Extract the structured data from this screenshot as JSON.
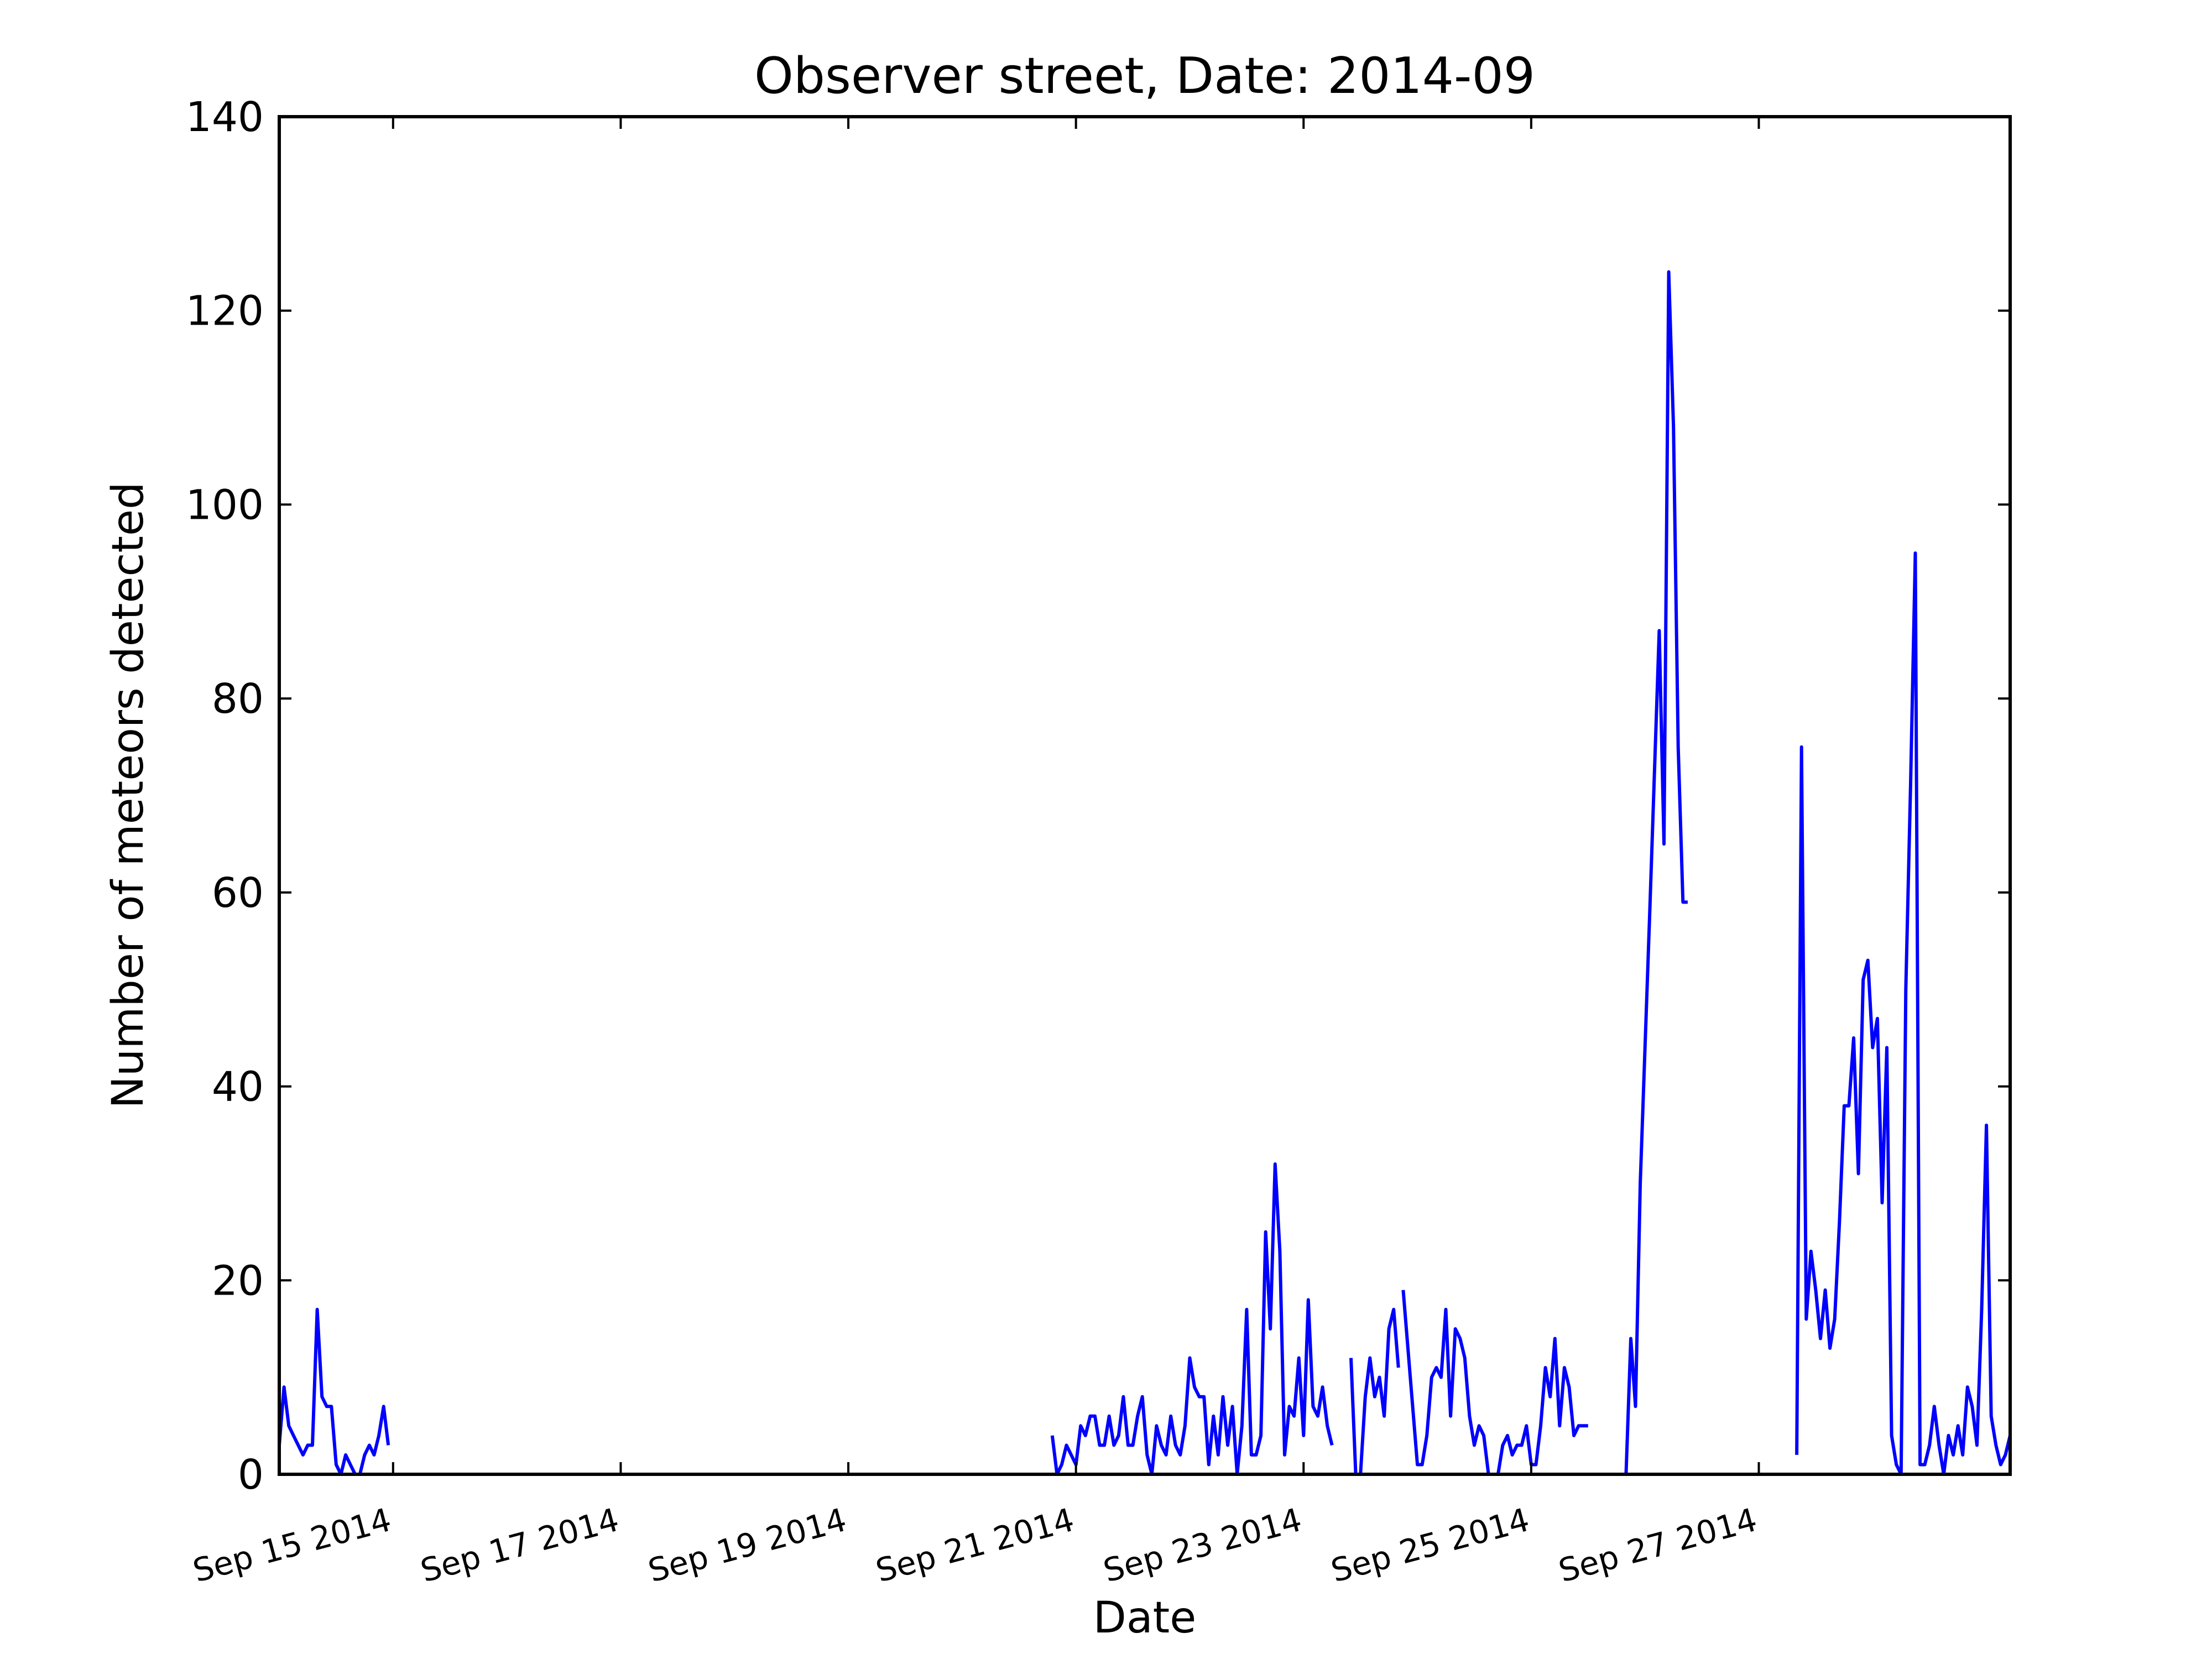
{
  "chart_data": {
    "type": "line",
    "title": "Observer street, Date: 2014-09",
    "xlabel": "Date",
    "ylabel": "Number of meteors detected",
    "ylim": [
      0,
      140
    ],
    "xlim": [
      "2014-09-14T00:00",
      "2014-09-29T05:00"
    ],
    "yticks": [
      0,
      20,
      40,
      60,
      80,
      100,
      120,
      140
    ],
    "xticks": [
      {
        "date": "2014-09-15",
        "label": "Sep 15 2014"
      },
      {
        "date": "2014-09-17",
        "label": "Sep 17 2014"
      },
      {
        "date": "2014-09-19",
        "label": "Sep 19 2014"
      },
      {
        "date": "2014-09-21",
        "label": "Sep 21 2014"
      },
      {
        "date": "2014-09-23",
        "label": "Sep 23 2014"
      },
      {
        "date": "2014-09-25",
        "label": "Sep 25 2014"
      },
      {
        "date": "2014-09-27",
        "label": "Sep 27 2014"
      }
    ],
    "grid": false,
    "legend": "none",
    "line_color": "#0000ff",
    "segments": [
      {
        "x": [
          "2014-09-14T00:00",
          "2014-09-14T01:00",
          "2014-09-14T02:00",
          "2014-09-14T03:00",
          "2014-09-14T04:00",
          "2014-09-14T05:00",
          "2014-09-14T06:00",
          "2014-09-14T07:00",
          "2014-09-14T08:00",
          "2014-09-14T09:00",
          "2014-09-14T10:00",
          "2014-09-14T11:00",
          "2014-09-14T12:00",
          "2014-09-14T13:00",
          "2014-09-14T14:00",
          "2014-09-14T15:00",
          "2014-09-14T16:00",
          "2014-09-14T17:00",
          "2014-09-14T18:00",
          "2014-09-14T19:00",
          "2014-09-14T20:00",
          "2014-09-14T21:00",
          "2014-09-14T22:00",
          "2014-09-14T23:00"
        ],
        "y": [
          3,
          9,
          5,
          4,
          3,
          2,
          3,
          3,
          17,
          8,
          7,
          7,
          1,
          0,
          2,
          1,
          0,
          0,
          2,
          3,
          2,
          4,
          7,
          3
        ]
      },
      {
        "x": [
          "2014-09-20T19:00",
          "2014-09-20T20:00",
          "2014-09-20T21:00",
          "2014-09-20T22:00",
          "2014-09-20T23:00",
          "2014-09-21T00:00",
          "2014-09-21T01:00",
          "2014-09-21T02:00",
          "2014-09-21T03:00",
          "2014-09-21T04:00",
          "2014-09-21T05:00",
          "2014-09-21T06:00",
          "2014-09-21T07:00",
          "2014-09-21T08:00",
          "2014-09-21T09:00",
          "2014-09-21T10:00",
          "2014-09-21T11:00",
          "2014-09-21T12:00",
          "2014-09-21T13:00",
          "2014-09-21T14:00",
          "2014-09-21T15:00",
          "2014-09-21T16:00",
          "2014-09-21T17:00",
          "2014-09-21T18:00",
          "2014-09-21T19:00",
          "2014-09-21T20:00",
          "2014-09-21T21:00",
          "2014-09-21T22:00",
          "2014-09-21T23:00",
          "2014-09-22T00:00",
          "2014-09-22T01:00",
          "2014-09-22T02:00",
          "2014-09-22T03:00",
          "2014-09-22T04:00",
          "2014-09-22T05:00",
          "2014-09-22T06:00",
          "2014-09-22T07:00",
          "2014-09-22T08:00",
          "2014-09-22T09:00",
          "2014-09-22T10:00",
          "2014-09-22T11:00",
          "2014-09-22T12:00",
          "2014-09-22T13:00",
          "2014-09-22T14:00",
          "2014-09-22T15:00",
          "2014-09-22T16:00",
          "2014-09-22T17:00",
          "2014-09-22T18:00",
          "2014-09-22T19:00",
          "2014-09-22T20:00",
          "2014-09-22T21:00",
          "2014-09-22T22:00",
          "2014-09-22T23:00",
          "2014-09-23T00:00",
          "2014-09-23T01:00",
          "2014-09-23T02:00",
          "2014-09-23T03:00",
          "2014-09-23T04:00",
          "2014-09-23T05:00",
          "2014-09-23T06:00"
        ],
        "y": [
          4,
          0,
          1,
          3,
          2,
          1,
          5,
          4,
          6,
          6,
          3,
          3,
          6,
          3,
          4,
          8,
          3,
          3,
          6,
          8,
          2,
          0,
          5,
          3,
          2,
          6,
          3,
          2,
          5,
          12,
          9,
          8,
          8,
          1,
          6,
          2,
          8,
          3,
          7,
          0,
          5,
          17,
          2,
          2,
          4,
          25,
          15,
          32,
          23,
          2,
          7,
          6,
          12,
          4,
          18,
          7,
          6,
          9,
          5,
          3
        ]
      },
      {
        "x": [
          "2014-09-23T10:00",
          "2014-09-23T11:00",
          "2014-09-23T12:00",
          "2014-09-23T13:00",
          "2014-09-23T14:00",
          "2014-09-23T15:00",
          "2014-09-23T16:00",
          "2014-09-23T17:00",
          "2014-09-23T18:00",
          "2014-09-23T19:00",
          "2014-09-23T20:00"
        ],
        "y": [
          12,
          0,
          0,
          8,
          12,
          8,
          10,
          6,
          15,
          17,
          11
        ]
      },
      {
        "x": [
          "2014-09-23T21:00",
          "2014-09-24T00:00",
          "2014-09-24T01:00",
          "2014-09-24T02:00",
          "2014-09-24T03:00",
          "2014-09-24T04:00",
          "2014-09-24T05:00",
          "2014-09-24T06:00",
          "2014-09-24T07:00",
          "2014-09-24T08:00",
          "2014-09-24T09:00",
          "2014-09-24T10:00",
          "2014-09-24T11:00",
          "2014-09-24T12:00",
          "2014-09-24T13:00",
          "2014-09-24T14:00",
          "2014-09-24T15:00",
          "2014-09-24T16:00",
          "2014-09-24T17:00",
          "2014-09-24T18:00",
          "2014-09-24T19:00",
          "2014-09-24T20:00",
          "2014-09-24T21:00",
          "2014-09-24T22:00",
          "2014-09-24T23:00",
          "2014-09-25T00:00",
          "2014-09-25T01:00",
          "2014-09-25T02:00",
          "2014-09-25T03:00",
          "2014-09-25T04:00",
          "2014-09-25T05:00",
          "2014-09-25T06:00",
          "2014-09-25T07:00",
          "2014-09-25T08:00",
          "2014-09-25T09:00",
          "2014-09-25T10:00",
          "2014-09-25T11:00",
          "2014-09-25T12:00"
        ],
        "y": [
          19,
          1,
          1,
          4,
          10,
          11,
          10,
          17,
          6,
          15,
          14,
          12,
          6,
          3,
          5,
          4,
          0,
          0,
          0,
          3,
          4,
          2,
          3,
          3,
          5,
          1,
          1,
          5,
          11,
          8,
          14,
          5,
          11,
          9,
          4,
          5,
          5,
          5
        ]
      },
      {
        "x": [
          "2014-09-25T20:00",
          "2014-09-25T21:00",
          "2014-09-25T22:00",
          "2014-09-25T23:00",
          "2014-09-26T01:00",
          "2014-09-26T03:00",
          "2014-09-26T04:00",
          "2014-09-26T05:00",
          "2014-09-26T06:00",
          "2014-09-26T07:00",
          "2014-09-26T08:00",
          "2014-09-26T09:00"
        ],
        "y": [
          0,
          14,
          7,
          30,
          58,
          87,
          65,
          124,
          108,
          75,
          59,
          59
        ]
      },
      {
        "x": [
          "2014-09-27T08:00",
          "2014-09-27T09:00",
          "2014-09-27T10:00",
          "2014-09-27T11:00",
          "2014-09-27T12:00",
          "2014-09-27T13:00",
          "2014-09-27T14:00",
          "2014-09-27T15:00",
          "2014-09-27T16:00",
          "2014-09-27T17:00",
          "2014-09-27T18:00",
          "2014-09-27T19:00",
          "2014-09-27T20:00",
          "2014-09-27T21:00",
          "2014-09-27T22:00",
          "2014-09-27T23:00",
          "2014-09-28T00:00",
          "2014-09-28T01:00",
          "2014-09-28T02:00",
          "2014-09-28T03:00",
          "2014-09-28T04:00",
          "2014-09-28T05:00",
          "2014-09-28T06:00",
          "2014-09-28T07:00",
          "2014-09-28T08:00",
          "2014-09-28T09:00",
          "2014-09-28T10:00",
          "2014-09-28T11:00",
          "2014-09-28T12:00",
          "2014-09-28T13:00",
          "2014-09-28T14:00",
          "2014-09-28T15:00",
          "2014-09-28T16:00",
          "2014-09-28T17:00",
          "2014-09-28T18:00",
          "2014-09-28T19:00",
          "2014-09-28T20:00",
          "2014-09-28T21:00",
          "2014-09-28T22:00",
          "2014-09-28T23:00",
          "2014-09-29T00:00",
          "2014-09-29T01:00",
          "2014-09-29T02:00",
          "2014-09-29T03:00",
          "2014-09-29T04:00",
          "2014-09-29T05:00"
        ],
        "y": [
          2,
          75,
          16,
          23,
          19,
          14,
          19,
          13,
          16,
          26,
          38,
          38,
          45,
          31,
          51,
          53,
          44,
          47,
          28,
          44,
          4,
          1,
          0,
          50,
          71,
          95,
          1,
          1,
          3,
          7,
          3,
          0,
          4,
          2,
          5,
          2,
          9,
          7,
          3,
          17,
          36,
          6,
          3,
          1,
          2,
          4
        ]
      }
    ]
  }
}
